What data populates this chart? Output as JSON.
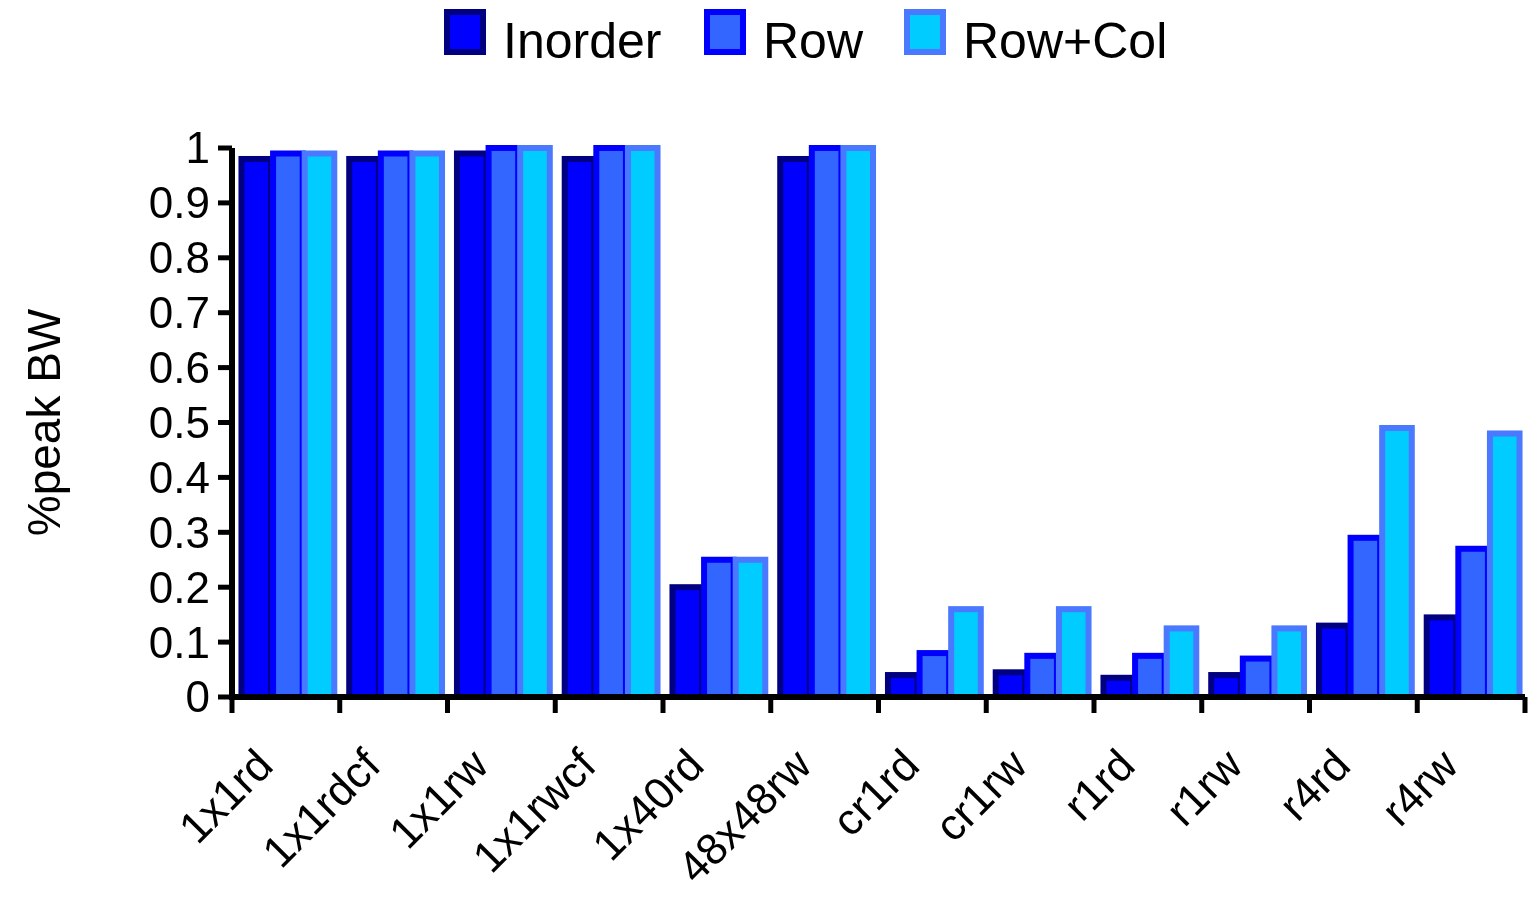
{
  "chart_data": {
    "type": "bar",
    "ylabel": "%peak BW",
    "categories": [
      "1x1rd",
      "1x1rdcf",
      "1x1rw",
      "1x1rwcf",
      "1x40rd",
      "48x48rw",
      "cr1rd",
      "cr1rw",
      "r1rd",
      "r1rw",
      "r4rd",
      "r4rw"
    ],
    "series": [
      {
        "name": "Inorder",
        "color": "#0000ff",
        "values": [
          0.98,
          0.98,
          0.99,
          0.98,
          0.2,
          0.98,
          0.04,
          0.045,
          0.035,
          0.04,
          0.13,
          0.145
        ]
      },
      {
        "name": "Row",
        "color": "#3366ff",
        "values": [
          0.99,
          0.99,
          1,
          1,
          0.25,
          1,
          0.08,
          0.075,
          0.075,
          0.07,
          0.29,
          0.27
        ]
      },
      {
        "name": "Row+Col",
        "color": "#00ccff",
        "values": [
          0.99,
          0.99,
          1,
          1,
          0.25,
          1,
          0.16,
          0.16,
          0.125,
          0.125,
          0.49,
          0.48
        ]
      }
    ],
    "ylim": [
      0,
      1
    ],
    "yticks": [
      0,
      {
        "value": 0.1,
        "label": "0.1"
      },
      {
        "value": 0.2,
        "label": "0.2"
      },
      {
        "value": 0.3,
        "label": "0.3"
      },
      {
        "value": 0.4,
        "label": "0.4"
      },
      {
        "value": 0.5,
        "label": "0.5"
      },
      {
        "value": 0.6,
        "label": "0.6"
      },
      {
        "value": 0.7,
        "label": "0.7"
      },
      {
        "value": 0.8,
        "label": "0.8"
      },
      {
        "value": 0.9,
        "label": "0.9"
      },
      1
    ],
    "grid": false,
    "legend": "top"
  }
}
